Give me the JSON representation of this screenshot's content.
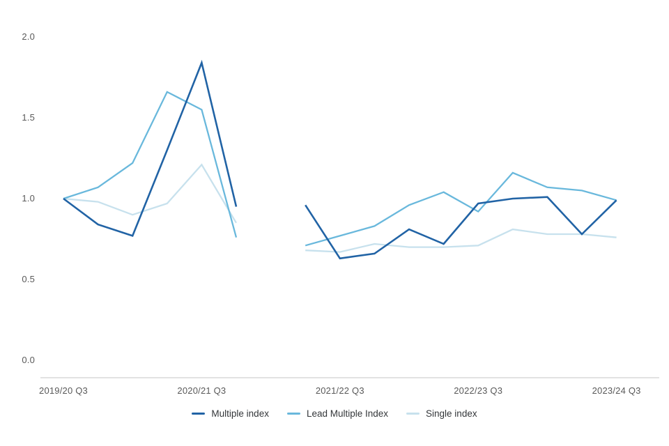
{
  "chart_data": {
    "type": "line",
    "title": "",
    "xlabel": "",
    "ylabel": "",
    "grid": false,
    "legend_position": "bottom-center",
    "ylim": [
      0.0,
      2.0
    ],
    "y_ticks": [
      {
        "label": "2.0",
        "value": 2.0
      },
      {
        "label": "1.5",
        "value": 1.5
      },
      {
        "label": "1.0",
        "value": 1.0
      },
      {
        "label": "0.5",
        "value": 0.5
      },
      {
        "label": "0.0",
        "value": 0.0
      }
    ],
    "x_categories": [
      "2019/20 Q3",
      "2019/20 Q4",
      "2020/21 Q1",
      "2020/21 Q2",
      "2020/21 Q3",
      "2020/21 Q4",
      "2021/22 Q1",
      "2021/22 Q2",
      "2021/22 Q3",
      "2021/22 Q4",
      "2022/23 Q1",
      "2022/23 Q2",
      "2022/23 Q3",
      "2022/23 Q4",
      "2023/24 Q1",
      "2023/24 Q2",
      "2023/24 Q3"
    ],
    "x_ticks": [
      {
        "label": "2019/20 Q3",
        "index": 0
      },
      {
        "label": "2020/21 Q3",
        "index": 4
      },
      {
        "label": "2021/22 Q3",
        "index": 8
      },
      {
        "label": "2022/23 Q3",
        "index": 12
      },
      {
        "label": "2023/24 Q3",
        "index": 16
      }
    ],
    "data_gap": "2021/22 Q1 has no data (break between line segments)",
    "series": [
      {
        "name": "Multiple index",
        "color": "#2163a5",
        "values": [
          1.0,
          0.84,
          0.77,
          1.3,
          1.84,
          0.95,
          null,
          0.96,
          0.63,
          0.66,
          0.81,
          0.72,
          0.97,
          1.0,
          1.01,
          0.78,
          0.99
        ]
      },
      {
        "name": "Lead Multiple Index",
        "color": "#69b8dc",
        "values": [
          1.0,
          1.07,
          1.22,
          1.66,
          1.55,
          0.76,
          null,
          0.71,
          0.77,
          0.83,
          0.96,
          1.04,
          0.92,
          1.16,
          1.07,
          1.05,
          0.99
        ]
      },
      {
        "name": "Single index",
        "color": "#c7e1ed",
        "values": [
          1.0,
          0.98,
          0.9,
          0.97,
          1.21,
          0.85,
          null,
          0.68,
          0.67,
          0.72,
          0.7,
          0.7,
          0.71,
          0.81,
          0.78,
          0.78,
          0.76
        ]
      }
    ],
    "axis_line_color": "#d9d9d9"
  }
}
